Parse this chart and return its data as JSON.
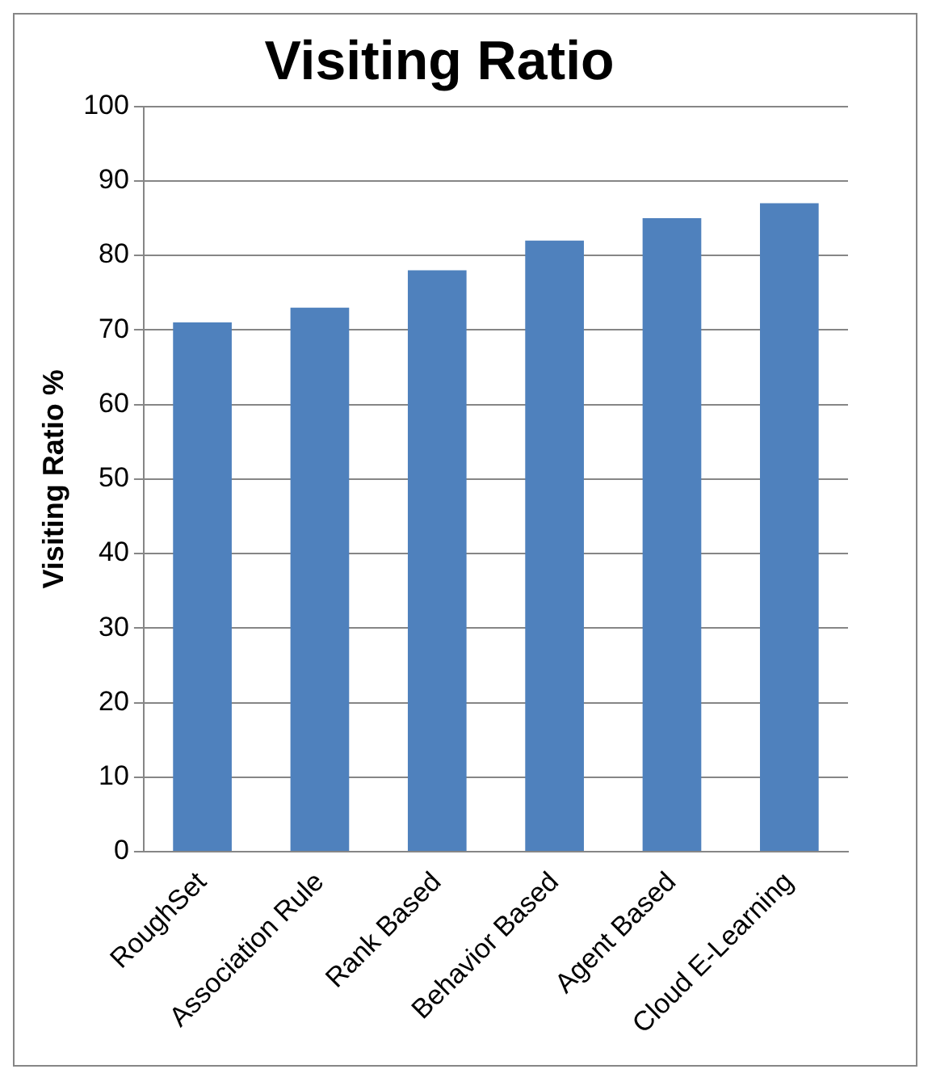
{
  "chart_data": {
    "type": "bar",
    "title": "Visiting Ratio",
    "ylabel": "Visiting Ratio %",
    "categories": [
      "RoughSet",
      "Association Rule",
      "Rank Based",
      "Behavior Based",
      "Agent Based",
      "Cloud E-Learning"
    ],
    "series": [
      {
        "color": "#4f81bd",
        "values": [
          71,
          73,
          78,
          82,
          85,
          87
        ]
      }
    ],
    "ylim": [
      0,
      100
    ],
    "yticks": [
      0,
      10,
      20,
      30,
      40,
      50,
      60,
      70,
      80,
      90,
      100
    ],
    "grid": "y",
    "legend": false
  }
}
